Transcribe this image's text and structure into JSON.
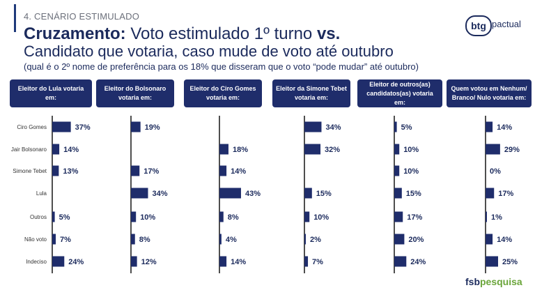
{
  "header": {
    "section_label": "4. CENÁRIO ESTIMULADO",
    "title_bold": "Cruzamento:",
    "title_rest": " Voto estimulado 1º turno ",
    "title_vs": "vs.",
    "title_line2": "Candidato que votaria, caso mude de voto até outubro",
    "subtitle": "(qual é o 2º nome de preferência para os 18% que disseram que o voto “pode mudar” até outubro)"
  },
  "logos": {
    "btg_mark": "btg",
    "btg_word": "pactual",
    "fsb_part1": "fsb",
    "fsb_part2": "pesquisa"
  },
  "colors": {
    "bar": "#1f2d6b",
    "header_bg": "#1f2d6b",
    "text": "#1b2a5c",
    "fsb_green": "#6aa53a"
  },
  "chart_data": {
    "type": "bar",
    "orientation": "horizontal",
    "categories": [
      "Ciro Gomes",
      "Jair Bolsonaro",
      "Simone Tebet",
      "Lula",
      "Outros",
      "Não voto",
      "Indeciso"
    ],
    "unit": "%",
    "series": [
      {
        "name": "Eleitor do Lula votaria em:",
        "values": [
          37,
          14,
          13,
          null,
          5,
          7,
          24
        ]
      },
      {
        "name": "Eleitor do Bolsonaro votaria em:",
        "values": [
          19,
          null,
          17,
          34,
          10,
          8,
          12
        ]
      },
      {
        "name": "Eleitor do Ciro Gomes votaria em:",
        "values": [
          null,
          18,
          14,
          43,
          8,
          4,
          14
        ]
      },
      {
        "name": "Eleitor da Simone Tebet votaria em:",
        "values": [
          34,
          32,
          null,
          15,
          10,
          2,
          7
        ]
      },
      {
        "name": "Eleitor de outros(as) candidatos(as) votaria em:",
        "values": [
          5,
          10,
          10,
          15,
          17,
          20,
          24
        ]
      },
      {
        "name": "Quem votou em Nenhum/ Branco/ Nulo votaria em:",
        "values": [
          14,
          29,
          0,
          17,
          1,
          14,
          25
        ]
      }
    ]
  }
}
